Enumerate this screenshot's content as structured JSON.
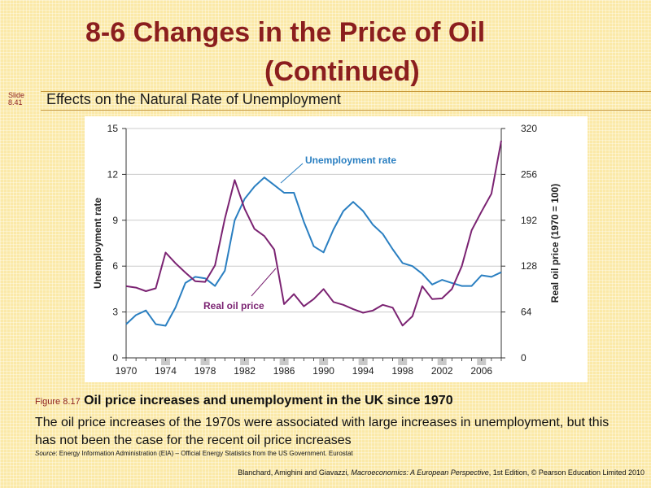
{
  "slide": {
    "title_line1": "8-6  Changes in the Price of Oil",
    "title_line2": "(Continued)",
    "slide_label": "Slide",
    "slide_number": "8.41",
    "subtitle": "Effects on the Natural  Rate of Unemployment"
  },
  "caption": {
    "figure_label": "Figure 8.17",
    "figure_title": "Oil price increases and unemployment  in the UK since 1970",
    "body": "The oil price increases of the 1970s were associated with large increases in unemployment, but this has not been the case for the recent oil price increases",
    "source_label": "Source",
    "source_text": ": Energy Information Administration (EIA) – Official Energy Statistics from the US Government. Eurostat"
  },
  "footer": {
    "pre": "Blanchard, Amighini and Giavazzi, ",
    "book": "Macroeconomics: A European Perspective",
    "edition": ", 1st Edition, © Pearson Education Limited 2010"
  },
  "colors": {
    "unemployment": "#2a7fc1",
    "oil": "#7b2372",
    "title": "#8b1e1e",
    "axis": "#333333",
    "gridline": "#cccccc"
  },
  "chart_data": {
    "type": "line",
    "title": "",
    "xlabel": "",
    "ylabel": "Unemployment rate",
    "y2label": "Real oil price (1970 = 100)",
    "xlim": [
      1970,
      2008
    ],
    "ylim": [
      0,
      15
    ],
    "y2lim": [
      0,
      320
    ],
    "yticks": [
      0,
      3,
      6,
      9,
      12,
      15
    ],
    "y2ticks": [
      0,
      64,
      128,
      192,
      256,
      320
    ],
    "xticks": [
      1970,
      1974,
      1978,
      1982,
      1986,
      1990,
      1994,
      1998,
      2002,
      2006
    ],
    "annotations": [
      {
        "text": "Unemployment rate",
        "series": "Unemployment rate"
      },
      {
        "text": "Real oil price",
        "series": "Real oil price"
      }
    ],
    "x": [
      1970,
      1971,
      1972,
      1973,
      1974,
      1975,
      1976,
      1977,
      1978,
      1979,
      1980,
      1981,
      1982,
      1983,
      1984,
      1985,
      1986,
      1987,
      1988,
      1989,
      1990,
      1991,
      1992,
      1993,
      1994,
      1995,
      1996,
      1997,
      1998,
      1999,
      2000,
      2001,
      2002,
      2003,
      2004,
      2005,
      2006,
      2007,
      2008
    ],
    "series": [
      {
        "name": "Unemployment rate",
        "axis": "left",
        "values": [
          2.2,
          2.8,
          3.1,
          2.2,
          2.1,
          3.3,
          4.9,
          5.3,
          5.2,
          4.7,
          5.7,
          9.0,
          10.4,
          11.2,
          11.8,
          11.3,
          10.8,
          10.8,
          8.9,
          7.3,
          6.9,
          8.4,
          9.6,
          10.2,
          9.6,
          8.7,
          8.1,
          7.1,
          6.2,
          6.0,
          5.5,
          4.8,
          5.1,
          4.9,
          4.7,
          4.7,
          5.4,
          5.3,
          5.6
        ]
      },
      {
        "name": "Real oil price",
        "axis": "right",
        "values": [
          100,
          98,
          93,
          97,
          147,
          132,
          119,
          107,
          106,
          129,
          194,
          248,
          208,
          180,
          170,
          151,
          75,
          89,
          72,
          82,
          96,
          78,
          74,
          68,
          63,
          66,
          74,
          70,
          45,
          58,
          100,
          82,
          83,
          96,
          128,
          178,
          204,
          229,
          303
        ]
      }
    ]
  }
}
